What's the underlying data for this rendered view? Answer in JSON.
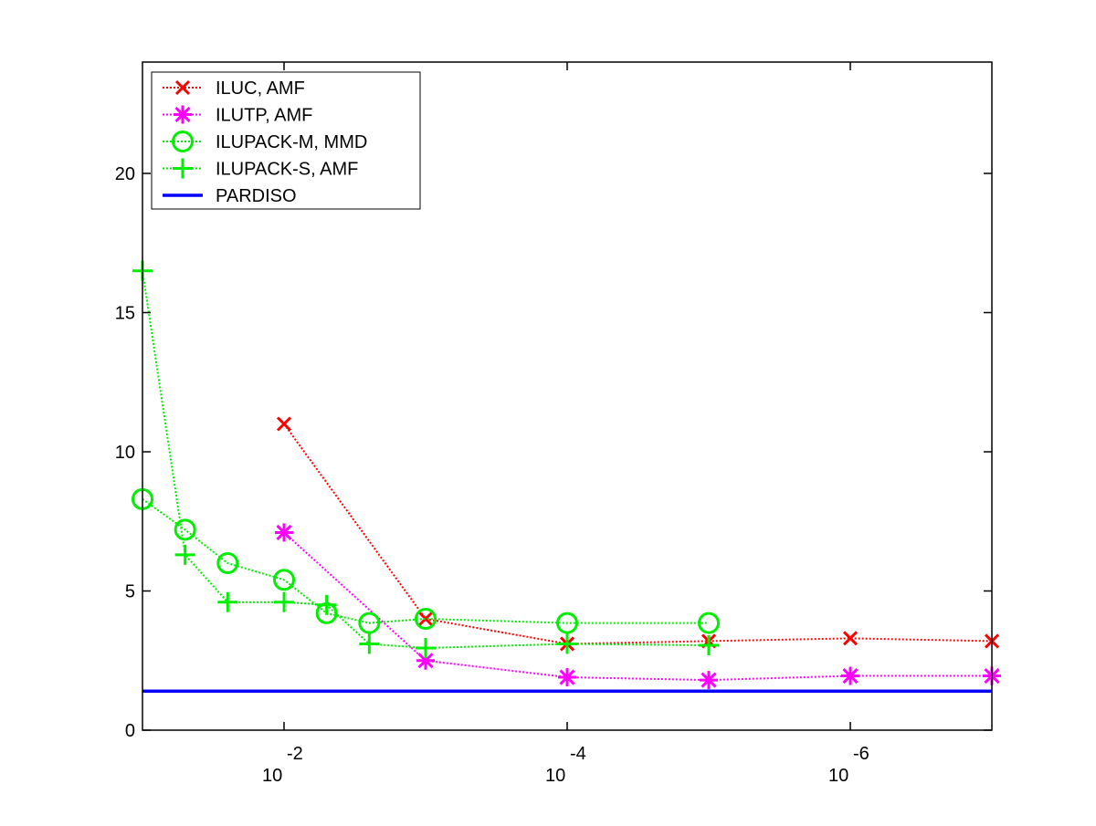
{
  "chart_data": {
    "type": "line",
    "title": "",
    "xlabel": "",
    "ylabel": "",
    "x_scale": "log-reversed",
    "xlim": [
      0.1,
      1e-07
    ],
    "ylim": [
      0,
      24
    ],
    "grid": false,
    "legend_position": "top-left",
    "x_ticks": [
      {
        "x": 0.01,
        "base": "10",
        "exp": "-2"
      },
      {
        "x": 0.0001,
        "base": "10",
        "exp": "-4"
      },
      {
        "x": 1e-06,
        "base": "10",
        "exp": "-6"
      }
    ],
    "y_ticks": [
      {
        "y": 0,
        "label": "0"
      },
      {
        "y": 5,
        "label": "5"
      },
      {
        "y": 10,
        "label": "10"
      },
      {
        "y": 15,
        "label": "15"
      },
      {
        "y": 20,
        "label": "20"
      }
    ],
    "series": [
      {
        "name": "ILUC, AMF",
        "color": "#ff0000",
        "marker": "x",
        "line": "dotted",
        "points": [
          [
            0.01,
            11.0
          ],
          [
            0.001,
            4.0
          ],
          [
            0.0001,
            3.1
          ],
          [
            1e-05,
            3.2
          ],
          [
            1e-06,
            3.3
          ],
          [
            1e-07,
            3.2
          ]
        ]
      },
      {
        "name": "ILUTP, AMF",
        "color": "#ff00ff",
        "marker": "asterisk",
        "line": "dotted",
        "points": [
          [
            0.01,
            7.1
          ],
          [
            0.001,
            2.5
          ],
          [
            0.0001,
            1.9
          ],
          [
            1e-05,
            1.8
          ],
          [
            1e-06,
            1.95
          ],
          [
            1e-07,
            1.95
          ]
        ]
      },
      {
        "name": "ILUPACK-M, MMD",
        "color": "#00ee00",
        "marker": "circle",
        "line": "dotted",
        "points": [
          [
            0.1,
            8.3
          ],
          [
            0.05,
            7.2
          ],
          [
            0.025,
            6.0
          ],
          [
            0.01,
            5.4
          ],
          [
            0.005,
            4.2
          ],
          [
            0.0025,
            3.85
          ],
          [
            0.001,
            4.0
          ],
          [
            0.0001,
            3.85
          ],
          [
            1e-05,
            3.85
          ]
        ]
      },
      {
        "name": "ILUPACK-S, AMF",
        "color": "#00ee00",
        "marker": "plus",
        "line": "dotted",
        "points": [
          [
            0.1,
            16.5
          ],
          [
            0.05,
            6.3
          ],
          [
            0.025,
            4.6
          ],
          [
            0.01,
            4.6
          ],
          [
            0.005,
            4.5
          ],
          [
            0.0025,
            3.1
          ],
          [
            0.001,
            2.95
          ],
          [
            0.0001,
            3.1
          ],
          [
            1e-05,
            3.05
          ]
        ]
      },
      {
        "name": "PARDISO",
        "color": "#0000ff",
        "marker": "none",
        "line": "solid",
        "points": [
          [
            0.1,
            1.4
          ],
          [
            1e-07,
            1.4
          ]
        ]
      }
    ]
  }
}
